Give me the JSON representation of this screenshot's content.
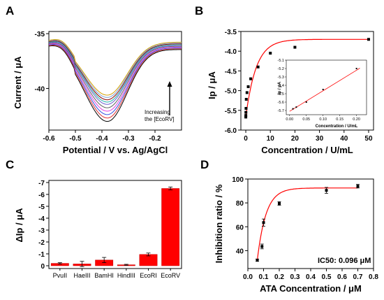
{
  "panels": {
    "a": {
      "label": "A"
    },
    "b": {
      "label": "B"
    },
    "c": {
      "label": "C"
    },
    "d": {
      "label": "D"
    }
  },
  "chart_data": [
    {
      "panel": "A",
      "type": "line",
      "xlabel": "Potential / V vs. Ag/AgCl",
      "ylabel": "Current / μA",
      "xlim": [
        -0.6,
        -0.1
      ],
      "ylim": [
        -43.8,
        -34.8
      ],
      "x_ticks": [
        "-0.6",
        "-0.5",
        "-0.4",
        "-0.3",
        "-0.2"
      ],
      "y_ticks": [
        "-35",
        "-40"
      ],
      "annotation": [
        "Increasing",
        "the [EcoRV]"
      ],
      "series": [
        {
          "color": "#000000",
          "peak_current": -42.9
        },
        {
          "color": "#e03030",
          "peak_current": -42.6
        },
        {
          "color": "#3050e0",
          "peak_current": -42.3
        },
        {
          "color": "#e040e0",
          "peak_current": -42.0
        },
        {
          "color": "#606060",
          "peak_current": -41.7
        },
        {
          "color": "#6a5acd",
          "peak_current": -41.4
        },
        {
          "color": "#20b2aa",
          "peak_current": -41.2
        },
        {
          "color": "#8b0000",
          "peak_current": -41.0
        },
        {
          "color": "#7fa0d0",
          "peak_current": -40.8
        },
        {
          "color": "#d4a000",
          "peak_current": -40.6
        }
      ],
      "peak_potential": -0.38
    },
    {
      "panel": "B",
      "type": "scatter",
      "xlabel": "Concentration / U/mL",
      "ylabel": "Ip / μA",
      "xlim": [
        -2,
        52
      ],
      "ylim": [
        -6.0,
        -3.5
      ],
      "x_ticks": [
        "0",
        "10",
        "20",
        "30",
        "40",
        "50"
      ],
      "y_ticks": [
        "-3.5",
        "-4.0",
        "-4.5",
        "-5.0",
        "-5.5",
        "-6.0"
      ],
      "x": [
        0.01,
        0.02,
        0.05,
        0.1,
        0.2,
        0.5,
        1,
        2,
        5,
        10,
        20,
        50
      ],
      "y": [
        -5.67,
        -5.63,
        -5.55,
        -5.45,
        -5.22,
        -5.05,
        -4.9,
        -4.7,
        -4.4,
        -4.05,
        -3.9,
        -3.7
      ],
      "fit_color": "#ff0000",
      "inset": {
        "xlabel": "Concentration / U/mL",
        "ylabel": "Ip / μA",
        "xlim": [
          -0.01,
          0.23
        ],
        "ylim": [
          -5.75,
          -5.1
        ],
        "x_ticks": [
          "0.00",
          "0.05",
          "0.10",
          "0.15",
          "0.20"
        ],
        "y_ticks": [
          "-5.1",
          "-5.2",
          "-5.3",
          "-5.4",
          "-5.5",
          "-5.6",
          "-5.7"
        ],
        "x": [
          0.01,
          0.02,
          0.05,
          0.1,
          0.2
        ],
        "y": [
          -5.68,
          -5.66,
          -5.6,
          -5.45,
          -5.2
        ]
      }
    },
    {
      "panel": "C",
      "type": "bar",
      "ylabel": "ΔIp / μA",
      "categories": [
        "PvuII",
        "HaeIII",
        "BamHI",
        "HindIII",
        "EcoRI",
        "EcoRV"
      ],
      "values": [
        -0.2,
        -0.15,
        -0.48,
        -0.08,
        -0.95,
        -6.5
      ],
      "errors": [
        0.06,
        0.22,
        0.22,
        0.04,
        0.12,
        0.12
      ],
      "ylim": [
        0,
        -7
      ],
      "y_ticks": [
        "0",
        "-1",
        "-2",
        "-3",
        "-4",
        "-5",
        "-6",
        "-7"
      ],
      "bar_color": "#ff0000"
    },
    {
      "panel": "D",
      "type": "scatter",
      "xlabel": "ATA Concentration / μM",
      "ylabel": "Inhibition ratio / %",
      "xlim": [
        0,
        0.8
      ],
      "ylim": [
        25,
        100
      ],
      "x_ticks": [
        "0.0",
        "0.1",
        "0.2",
        "0.3",
        "0.4",
        "0.5",
        "0.6",
        "0.7",
        "0.8"
      ],
      "y_ticks": [
        "40",
        "60",
        "80",
        "100"
      ],
      "x": [
        0.06,
        0.09,
        0.1,
        0.2,
        0.5,
        0.7
      ],
      "y": [
        32,
        43.5,
        63.5,
        79.5,
        90.5,
        94
      ],
      "errors": [
        1,
        2,
        3,
        1.5,
        2.5,
        1.5
      ],
      "fit_color": "#ff0000",
      "annotation": "IC50: 0.096 μM"
    }
  ]
}
